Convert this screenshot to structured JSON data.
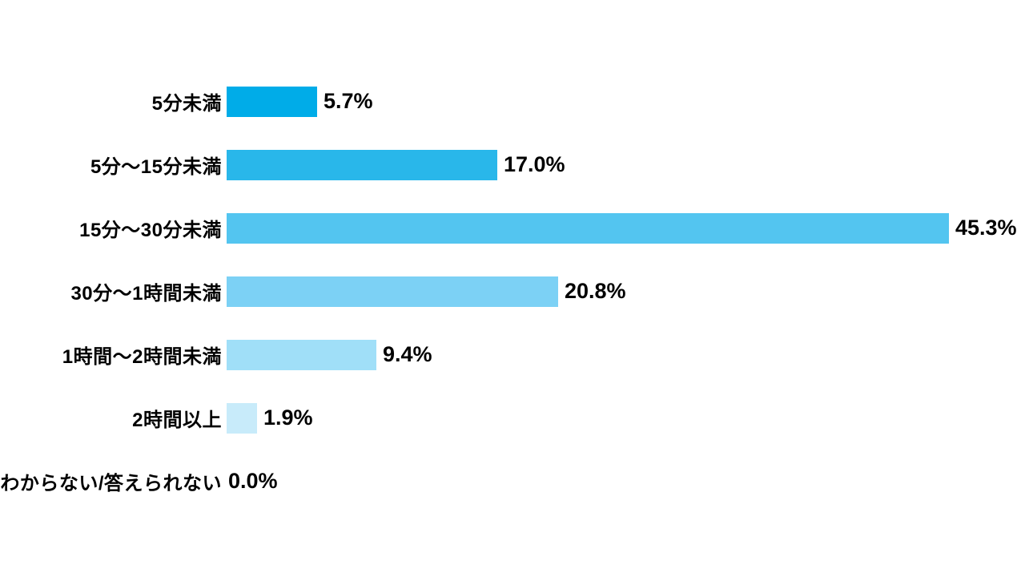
{
  "chart_data": {
    "type": "bar",
    "orientation": "horizontal",
    "title": "",
    "xlabel": "",
    "ylabel": "",
    "grid": false,
    "legend": false,
    "scale_max": 45.3,
    "background_color": "#ffffff",
    "text_color": "#000000",
    "categories": [
      "5分未満",
      "5分〜15分未満",
      "15分〜30分未満",
      "30分〜1時間未満",
      "1時間〜2時間未満",
      "2時間以上",
      "わからない/答えられない"
    ],
    "values": [
      5.7,
      17.0,
      45.3,
      20.8,
      9.4,
      1.9,
      0.0
    ],
    "value_labels": [
      "5.7%",
      "17.0%",
      "45.3%",
      "20.8%",
      "9.4%",
      "1.9%",
      "0.0%"
    ],
    "bar_colors": [
      "#00ACE8",
      "#29B7EA",
      "#53C5F0",
      "#7CD1F5",
      "#A0DFF8",
      "#C8EBFA",
      "#FFFFFF"
    ]
  }
}
